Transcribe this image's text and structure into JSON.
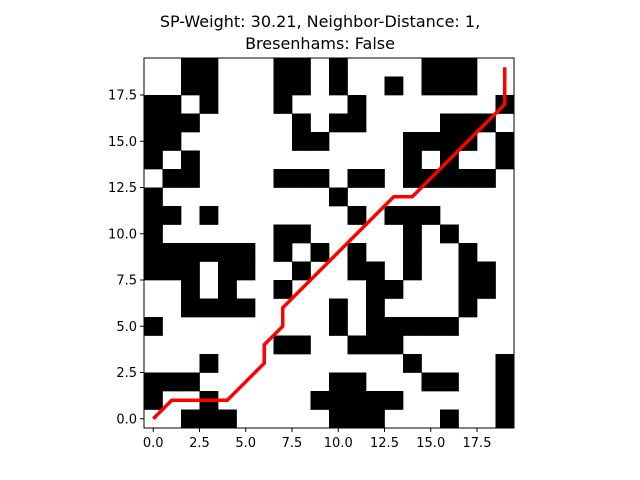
{
  "chart_data": {
    "type": "heatmap",
    "title_line1": "SP-Weight: 30.21, Neighbor-Distance: 1,",
    "title_line2": "Bresenhams: False",
    "xlabel": "",
    "ylabel": "",
    "xlim": [
      -0.5,
      19.5
    ],
    "ylim": [
      -0.5,
      19.5
    ],
    "xticks": [
      0.0,
      2.5,
      5.0,
      7.5,
      10.0,
      12.5,
      15.0,
      17.5
    ],
    "xtick_labels": [
      "0.0",
      "2.5",
      "5.0",
      "7.5",
      "10.0",
      "12.5",
      "15.0",
      "17.5"
    ],
    "yticks": [
      0.0,
      2.5,
      5.0,
      7.5,
      10.0,
      12.5,
      15.0,
      17.5
    ],
    "ytick_labels": [
      "0.0",
      "2.5",
      "5.0",
      "7.5",
      "10.0",
      "12.5",
      "15.0",
      "17.5"
    ],
    "grid": false,
    "colors": {
      "obstacle": "#000000",
      "free": "#ffffff",
      "path": "#ff0000"
    },
    "obstacle_grid_rows_top_to_bottom": [
      "..##...##.#....###..",
      "..##...##.#..#.###..",
      "##.#...#...#.......#",
      "###.....#.##....###.",
      "##......##....####.#",
      "#.#...........#.#..#",
      ".##....###.##.#####.",
      "#.........#.........",
      "##.#.......#.###....",
      "#......##.....#.#...",
      "######.#.#.#..#..#..",
      "###.##..#..##.#..##.",
      "..#.#..#....##...##.",
      "..####....#.#....#..",
      "#.........#.#####...",
      ".......##..###......",
      "...#..........#....#",
      "###.......##...##..#",
      "#..#.....#####.....#",
      "..###.....###...#..#"
    ],
    "path": {
      "name": "",
      "points": [
        [
          0,
          0
        ],
        [
          1,
          1
        ],
        [
          2,
          1
        ],
        [
          3,
          1
        ],
        [
          4,
          1
        ],
        [
          5,
          2
        ],
        [
          6,
          3
        ],
        [
          6,
          4
        ],
        [
          7,
          5
        ],
        [
          7,
          6
        ],
        [
          8,
          7
        ],
        [
          9,
          8
        ],
        [
          10,
          9
        ],
        [
          11,
          10
        ],
        [
          12,
          11
        ],
        [
          13,
          12
        ],
        [
          14,
          12
        ],
        [
          15,
          13
        ],
        [
          16,
          14
        ],
        [
          17,
          15
        ],
        [
          18,
          16
        ],
        [
          19,
          17
        ],
        [
          19,
          19
        ]
      ]
    }
  }
}
